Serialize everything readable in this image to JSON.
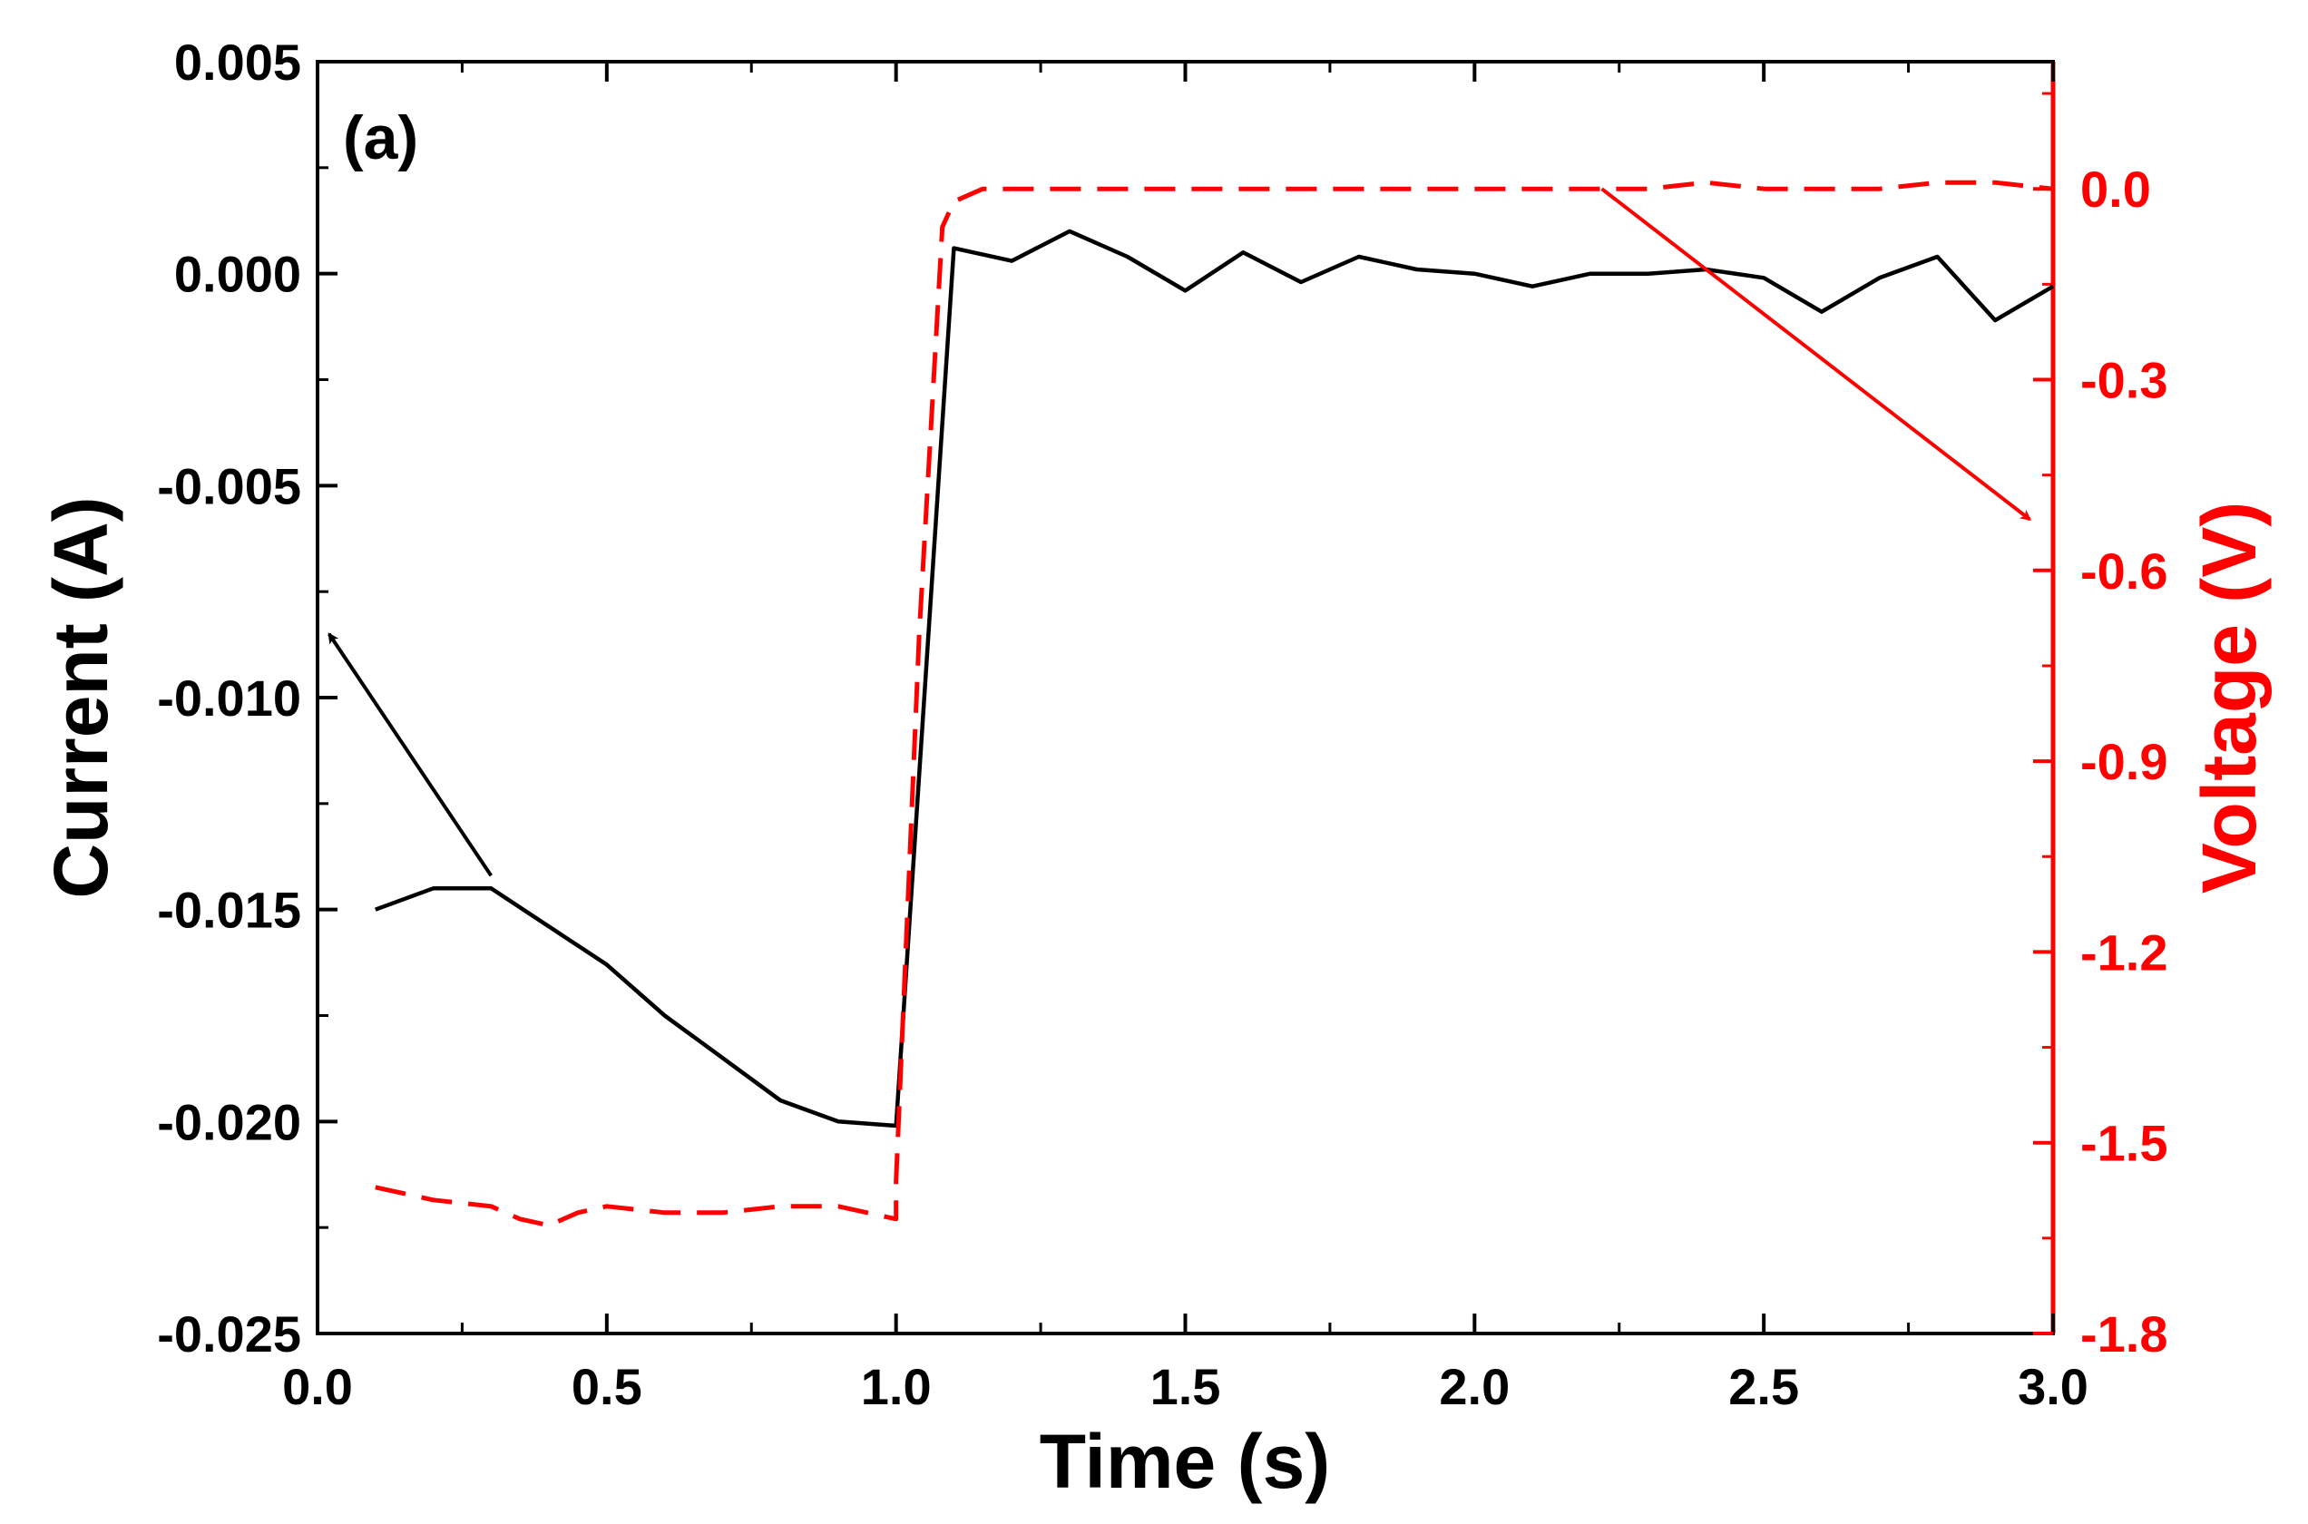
{
  "panel_label": "(a)",
  "colors": {
    "current": "#000000",
    "voltage": "#ff0000"
  },
  "chart_data": {
    "type": "line",
    "title": "",
    "xlabel": "Time (s)",
    "ylabel": "Current (A)",
    "y2label": "Voltage (V)",
    "xlim": [
      0.0,
      3.0
    ],
    "ylim": [
      -0.025,
      0.005
    ],
    "y2lim": [
      -1.8,
      0.2
    ],
    "xticks": [
      0.0,
      0.5,
      1.0,
      1.5,
      2.0,
      2.5,
      3.0
    ],
    "xtick_labels": [
      "0.0",
      "0.5",
      "1.0",
      "1.5",
      "2.0",
      "2.5",
      "3.0"
    ],
    "yticks": [
      0.005,
      0.0,
      -0.005,
      -0.01,
      -0.015,
      -0.02,
      -0.025
    ],
    "ytick_labels": [
      "0.005",
      "0.000",
      "-0.005",
      "-0.010",
      "-0.015",
      "-0.020",
      "-0.025"
    ],
    "y2ticks": [
      0.0,
      -0.3,
      -0.6,
      -0.9,
      -1.2,
      -1.5,
      -1.8
    ],
    "y2tick_labels": [
      "0.0",
      "-0.3",
      "-0.6",
      "-0.9",
      "-1.2",
      "-1.5",
      "-1.8"
    ],
    "series": [
      {
        "name": "Current",
        "axis": "left",
        "style": "solid",
        "x": [
          0.1,
          0.2,
          0.3,
          0.4,
          0.5,
          0.6,
          0.7,
          0.8,
          0.9,
          1.0,
          1.1,
          1.2,
          1.3,
          1.4,
          1.5,
          1.6,
          1.7,
          1.8,
          1.9,
          2.0,
          2.1,
          2.2,
          2.3,
          2.4,
          2.5,
          2.6,
          2.7,
          2.8,
          2.9,
          3.0
        ],
        "y": [
          -0.015,
          -0.0145,
          -0.0145,
          -0.0154,
          -0.0163,
          -0.0175,
          -0.0185,
          -0.0195,
          -0.02,
          -0.0201,
          0.0006,
          0.0003,
          0.001,
          0.0004,
          -0.0004,
          0.0005,
          -0.0002,
          0.0004,
          0.0001,
          0.0,
          -0.0003,
          0.0,
          0.0,
          0.0001,
          -0.0001,
          -0.0009,
          -0.0001,
          0.0004,
          -0.0011,
          -0.0003
        ]
      },
      {
        "name": "Voltage",
        "axis": "right",
        "style": "dashed",
        "x": [
          0.1,
          0.2,
          0.3,
          0.35,
          0.4,
          0.45,
          0.5,
          0.6,
          0.7,
          0.8,
          0.9,
          1.0,
          1.0,
          1.04,
          1.08,
          1.1,
          1.15,
          1.2,
          1.3,
          1.4,
          1.5,
          1.6,
          1.7,
          1.8,
          1.9,
          2.0,
          2.1,
          2.2,
          2.3,
          2.4,
          2.5,
          2.6,
          2.7,
          2.8,
          2.9,
          3.0
        ],
        "y": [
          -1.57,
          -1.59,
          -1.6,
          -1.62,
          -1.63,
          -1.61,
          -1.6,
          -1.61,
          -1.61,
          -1.6,
          -1.6,
          -1.62,
          -1.56,
          -0.7,
          -0.06,
          -0.02,
          0.0,
          0.0,
          0.0,
          0.0,
          0.0,
          0.0,
          0.0,
          0.0,
          0.0,
          0.0,
          0.0,
          0.0,
          0.0,
          0.01,
          0.0,
          0.0,
          0.0,
          0.01,
          0.01,
          0.0
        ]
      }
    ],
    "annotations": [
      {
        "type": "arrow",
        "target_axis": "left",
        "from": [
          0.3,
          -0.0142
        ],
        "to": [
          0.02,
          -0.0085
        ],
        "color": "black"
      },
      {
        "type": "arrow",
        "target_axis": "right",
        "from": [
          2.22,
          0.0
        ],
        "to": [
          2.96,
          -0.52
        ],
        "color": "red"
      }
    ]
  }
}
